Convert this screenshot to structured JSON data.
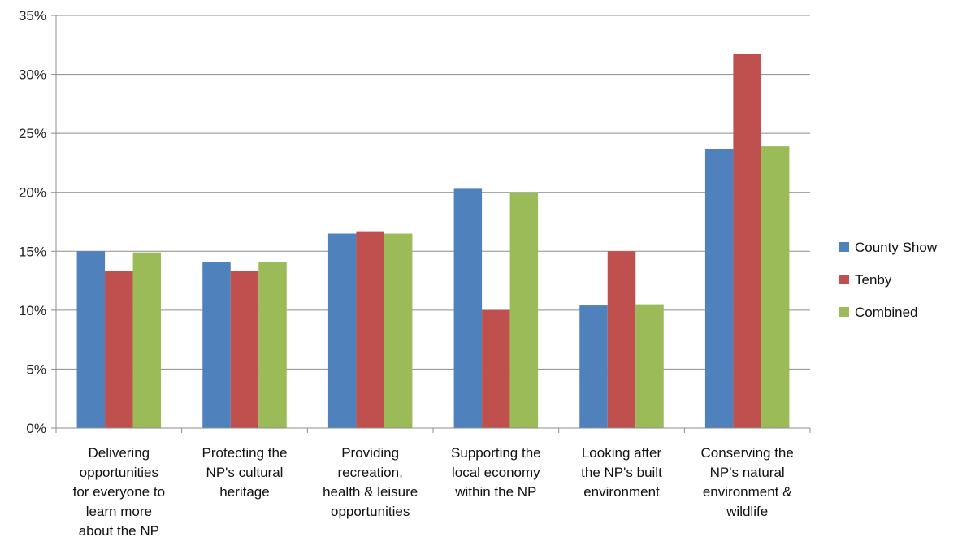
{
  "chart_data": {
    "type": "bar",
    "title": "",
    "xlabel": "",
    "ylabel": "",
    "ylim": [
      0,
      35
    ],
    "y_ticks": [
      "0%",
      "5%",
      "10%",
      "15%",
      "20%",
      "25%",
      "30%",
      "35%"
    ],
    "grid": true,
    "legend_position": "right",
    "categories": [
      [
        "Delivering",
        "opportunities",
        "for everyone to",
        "learn more",
        "about the NP"
      ],
      [
        "Protecting the",
        "NP's cultural",
        "heritage"
      ],
      [
        "Providing",
        "recreation,",
        "health & leisure",
        "opportunities"
      ],
      [
        "Supporting the",
        "local economy",
        "within the NP"
      ],
      [
        "Looking after",
        "the NP's built",
        "environment"
      ],
      [
        "Conserving the",
        "NP's natural",
        "environment &",
        "wildlife"
      ]
    ],
    "series": [
      {
        "name": "County Show",
        "color": "#4F81BD",
        "values": [
          15.0,
          14.1,
          16.5,
          20.3,
          10.4,
          23.7
        ]
      },
      {
        "name": "Tenby",
        "color": "#C0504D",
        "values": [
          13.3,
          13.3,
          16.7,
          10.0,
          15.0,
          31.7
        ]
      },
      {
        "name": "Combined",
        "color": "#9BBB59",
        "values": [
          14.9,
          14.1,
          16.5,
          20.0,
          10.5,
          23.9
        ]
      }
    ]
  }
}
